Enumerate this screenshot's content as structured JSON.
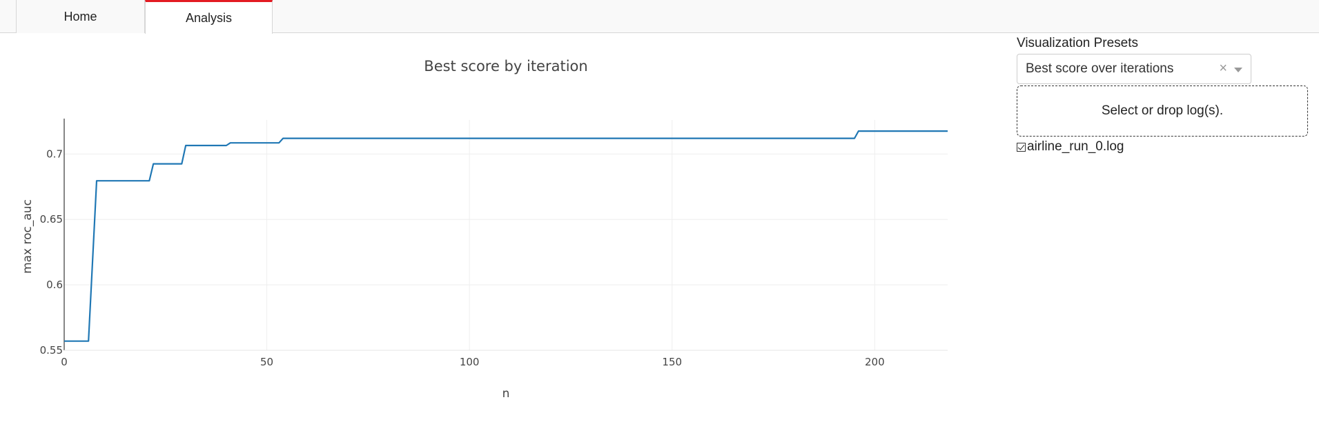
{
  "tabs": [
    {
      "label": "Home",
      "active": false
    },
    {
      "label": "Analysis",
      "active": true
    }
  ],
  "panel": {
    "preset_label": "Visualization Presets",
    "preset_value": "Best score over iterations",
    "clear_symbol": "×",
    "dropzone_text": "Select or drop log(s).",
    "files": [
      {
        "name": "airline_run_0.log",
        "checked": true
      }
    ]
  },
  "colors": {
    "accent_tab": "#e31b23",
    "series_line": "#1f77b4"
  },
  "chart_data": {
    "type": "line",
    "title": "Best score by iteration",
    "xlabel": "n",
    "ylabel": "max roc_auc",
    "xlim": [
      0,
      218
    ],
    "ylim": [
      0.55,
      0.726
    ],
    "x_ticks": [
      0,
      50,
      100,
      150,
      200
    ],
    "y_ticks": [
      0.55,
      0.6,
      0.65,
      0.7
    ],
    "y_tick_labels": [
      "0.55",
      "0.6",
      "0.65",
      "0.7"
    ],
    "grid": true,
    "series": [
      {
        "x": [
          0,
          6,
          8,
          21,
          22,
          29,
          30,
          40,
          41,
          53,
          54,
          195,
          196,
          218
        ],
        "y": [
          0.557,
          0.557,
          0.6795,
          0.6795,
          0.6925,
          0.6925,
          0.7065,
          0.7065,
          0.7085,
          0.7085,
          0.712,
          0.712,
          0.7175,
          0.7175
        ]
      }
    ]
  }
}
